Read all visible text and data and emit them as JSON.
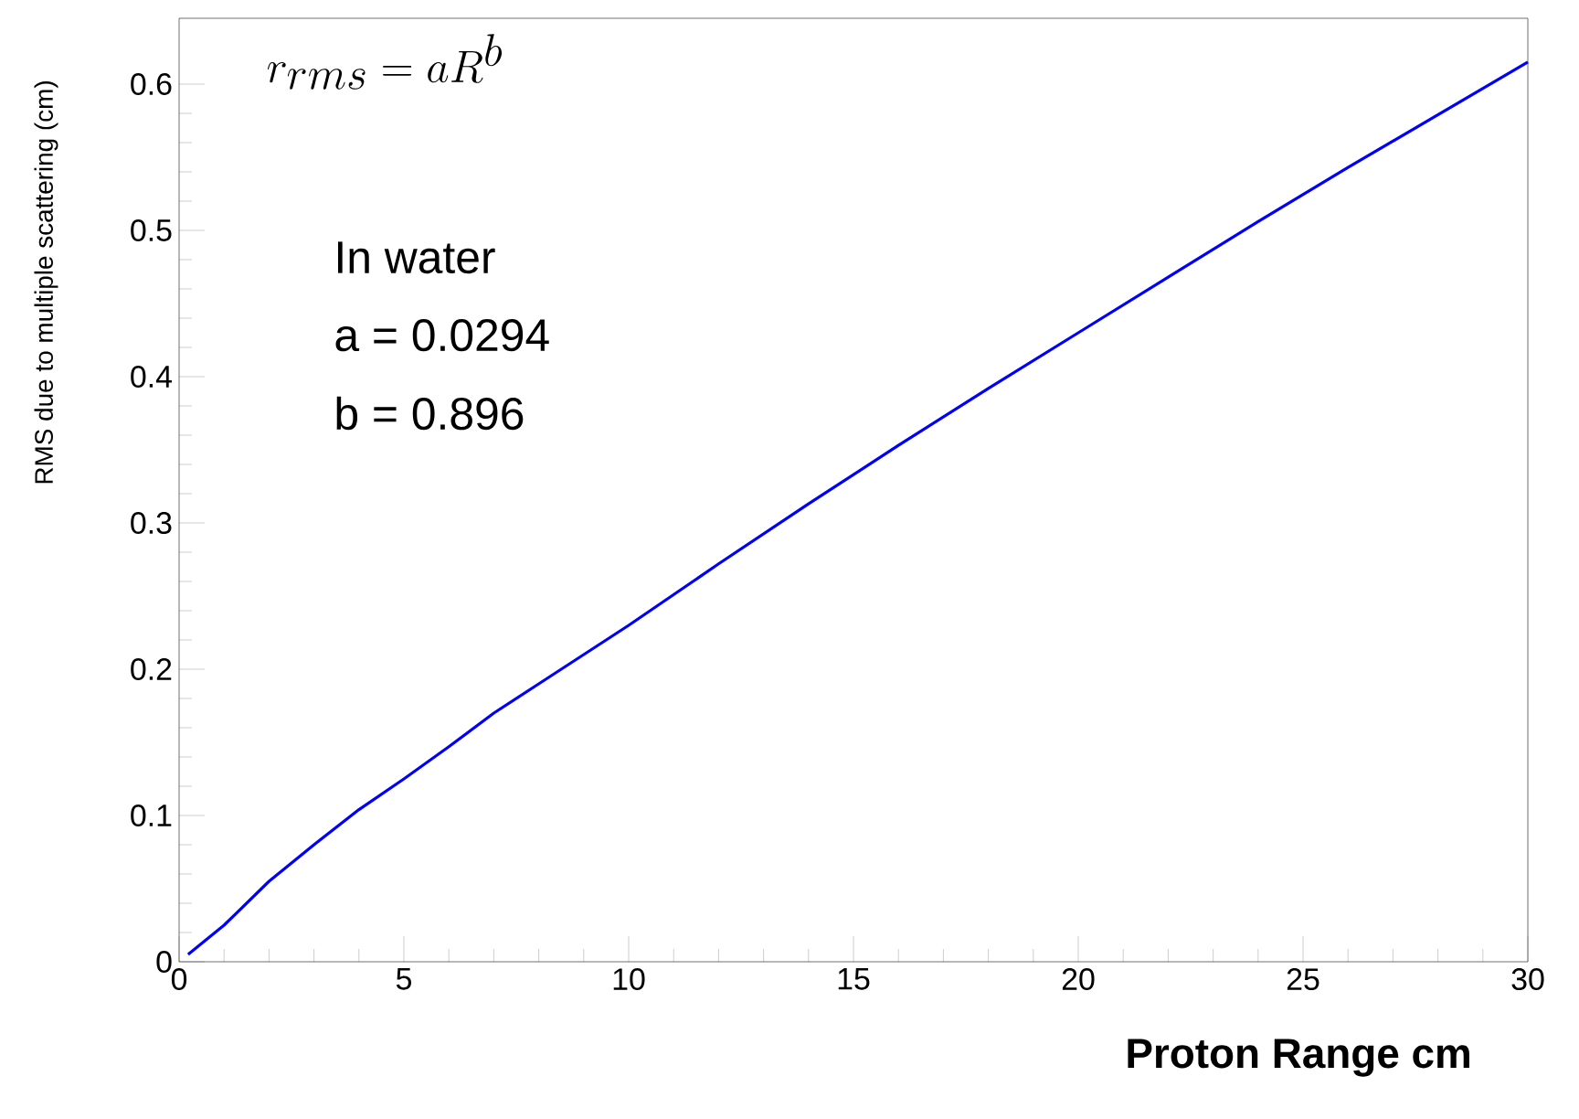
{
  "chart_data": {
    "type": "line",
    "xlabel": "Proton Range cm",
    "ylabel": "RMS due to multiple scattering (cm)",
    "x": [
      0.2,
      1,
      2,
      3,
      4,
      5,
      6,
      7,
      8,
      9,
      10,
      12,
      14,
      16,
      18,
      20,
      22,
      24,
      26,
      28,
      30
    ],
    "series": [
      {
        "color": "#0000ff",
        "values": [
          0.005,
          0.025,
          0.055,
          0.08,
          0.104,
          0.125,
          0.147,
          0.17,
          0.19,
          0.21,
          0.23,
          0.272,
          0.313,
          0.353,
          0.392,
          0.43,
          0.468,
          0.506,
          0.543,
          0.579,
          0.615
        ]
      }
    ],
    "xlim": [
      0,
      30
    ],
    "ylim": [
      0,
      0.645
    ],
    "xticks": [
      0,
      5,
      10,
      15,
      20,
      25,
      30
    ],
    "yticks": [
      0,
      0.1,
      0.2,
      0.3,
      0.4,
      0.5,
      0.6
    ],
    "marker": "none",
    "line_style": "solid",
    "annotations": [
      "r_{rms} = aR^b",
      "In water",
      "a = 0.0294",
      "b = 0.896"
    ]
  }
}
